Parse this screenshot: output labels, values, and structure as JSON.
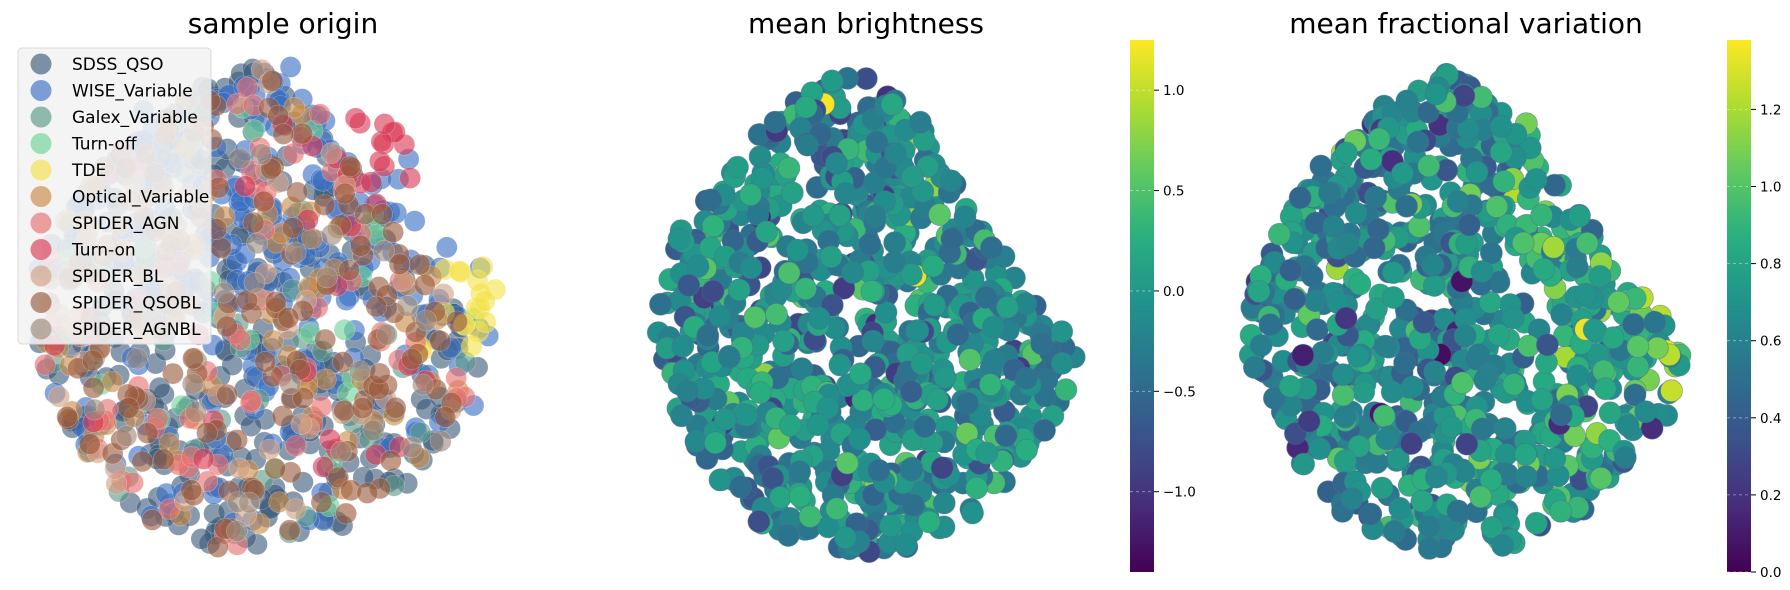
{
  "chart_data": [
    {
      "type": "scatter",
      "title": "sample origin",
      "xlabel": "",
      "ylabel": "",
      "axes_visible": false,
      "legend": {
        "placement": "top-left"
      },
      "series": [
        {
          "name": "SDSS_QSO",
          "color": "#3b5b7a",
          "count": 340
        },
        {
          "name": "WISE_Variable",
          "color": "#3a6fc4",
          "count": 260
        },
        {
          "name": "Galex_Variable",
          "color": "#5a9a88",
          "count": 40
        },
        {
          "name": "Turn-off",
          "color": "#6fd39a",
          "count": 25
        },
        {
          "name": "TDE",
          "color": "#f3e24a",
          "count": 18
        },
        {
          "name": "Optical_Variable",
          "color": "#c98a47",
          "count": 70
        },
        {
          "name": "SPIDER_AGN",
          "color": "#e87070",
          "count": 70
        },
        {
          "name": "Turn-on",
          "color": "#d83a55",
          "count": 35
        },
        {
          "name": "SPIDER_BL",
          "color": "#d2a184",
          "count": 45
        },
        {
          "name": "SPIDER_QSOBL",
          "color": "#9a5a3e",
          "count": 150
        },
        {
          "name": "SPIDER_AGNBL",
          "color": "#a08c7c",
          "count": 30
        }
      ]
    },
    {
      "type": "scatter",
      "title": "mean brightness",
      "xlabel": "",
      "ylabel": "",
      "axes_visible": false,
      "colorbar": {
        "colormap": "viridis",
        "range": [
          -1.4,
          1.25
        ],
        "ticks": [
          1.0,
          0.5,
          0.0,
          -0.5,
          -1.0
        ],
        "tick_labels": [
          "1.0",
          "0.5",
          "0.0",
          "−0.5",
          "−1.0"
        ]
      }
    },
    {
      "type": "scatter",
      "title": "mean fractional variation",
      "xlabel": "",
      "ylabel": "",
      "axes_visible": false,
      "colorbar": {
        "colormap": "viridis",
        "range": [
          0.0,
          1.38
        ],
        "ticks": [
          1.2,
          1.0,
          0.8,
          0.6,
          0.4,
          0.2,
          0.0
        ],
        "tick_labels": [
          "1.2",
          "1.0",
          "0.8",
          "0.6",
          "0.4",
          "0.2",
          "0.0"
        ]
      }
    }
  ]
}
